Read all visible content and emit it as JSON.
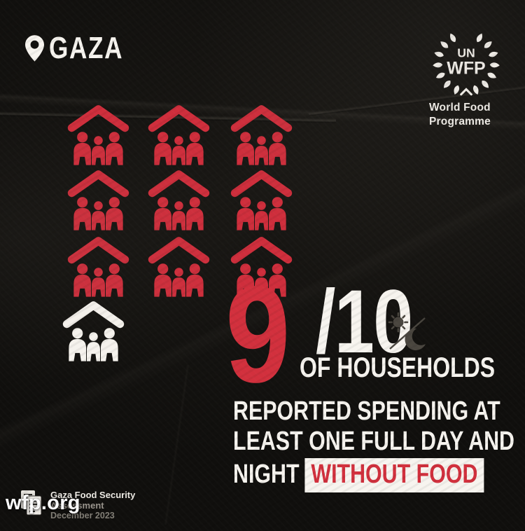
{
  "header": {
    "location_label": "GAZA"
  },
  "logo": {
    "top_text": "UN",
    "main_text": "WFP",
    "caption_line1": "World Food",
    "caption_line2": "Programme"
  },
  "chart_data": {
    "type": "pictograph",
    "title": "9/10 of households reported spending at least one full day and night without food",
    "unit": "household (roof sheltering family of three)",
    "total_units": 10,
    "highlighted_units": 9,
    "grid_columns": 3,
    "highlight_color": "#cf2e3c",
    "remainder_color": "#f7f4ef",
    "numerator_text": "9",
    "fraction_text": "/10",
    "caption_lines": [
      "OF HOUSEHOLDS",
      "REPORTED SPENDING AT",
      "LEAST ONE FULL DAY AND",
      "NIGHT WITHOUT FOOD"
    ]
  },
  "stat": {
    "numerator": "9",
    "fraction": "/10",
    "line1": "OF HOUSEHOLDS",
    "line2": "REPORTED SPENDING AT",
    "line3": "LEAST ONE FULL DAY AND",
    "line4_prefix": "NIGHT",
    "line4_highlight": "WITHOUT FOOD"
  },
  "footer": {
    "source_line1": "Gaza Food Security",
    "source_line2": "Assessment",
    "source_line3": "December 2023",
    "link_text": "wfp.org"
  },
  "colors": {
    "red": "#cf2e3c",
    "background": "#100f0d",
    "white": "#f7f4ef",
    "location": "GAZA"
  }
}
